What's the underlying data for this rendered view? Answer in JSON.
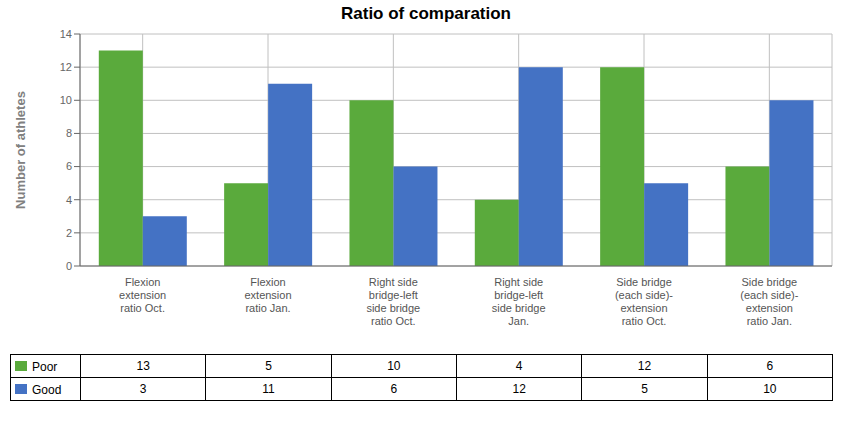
{
  "chart_data": {
    "type": "bar",
    "title": "Ratio of comparation",
    "ylabel": "Number of athletes",
    "categories": [
      "Flexion\nextension\nratio Oct.",
      "Flexion\nextension\nratio Jan.",
      "Right side\nbridge-left\nside bridge\nratio Oct.",
      "Right side\nbridge-left\nside bridge\nJan.",
      "Side bridge\n(each side)-\nextension\nratio Oct.",
      "Side bridge\n(each side)-\nextension\nratio Jan."
    ],
    "series": [
      {
        "name": "Poor",
        "color": "#5aaa3c",
        "values": [
          13,
          5,
          10,
          4,
          12,
          6
        ]
      },
      {
        "name": "Good",
        "color": "#4472c4",
        "values": [
          3,
          11,
          6,
          12,
          5,
          10
        ]
      }
    ],
    "ylim": [
      0,
      14
    ],
    "yticks": [
      0,
      2,
      4,
      6,
      8,
      10,
      12,
      14
    ],
    "grid": true
  }
}
